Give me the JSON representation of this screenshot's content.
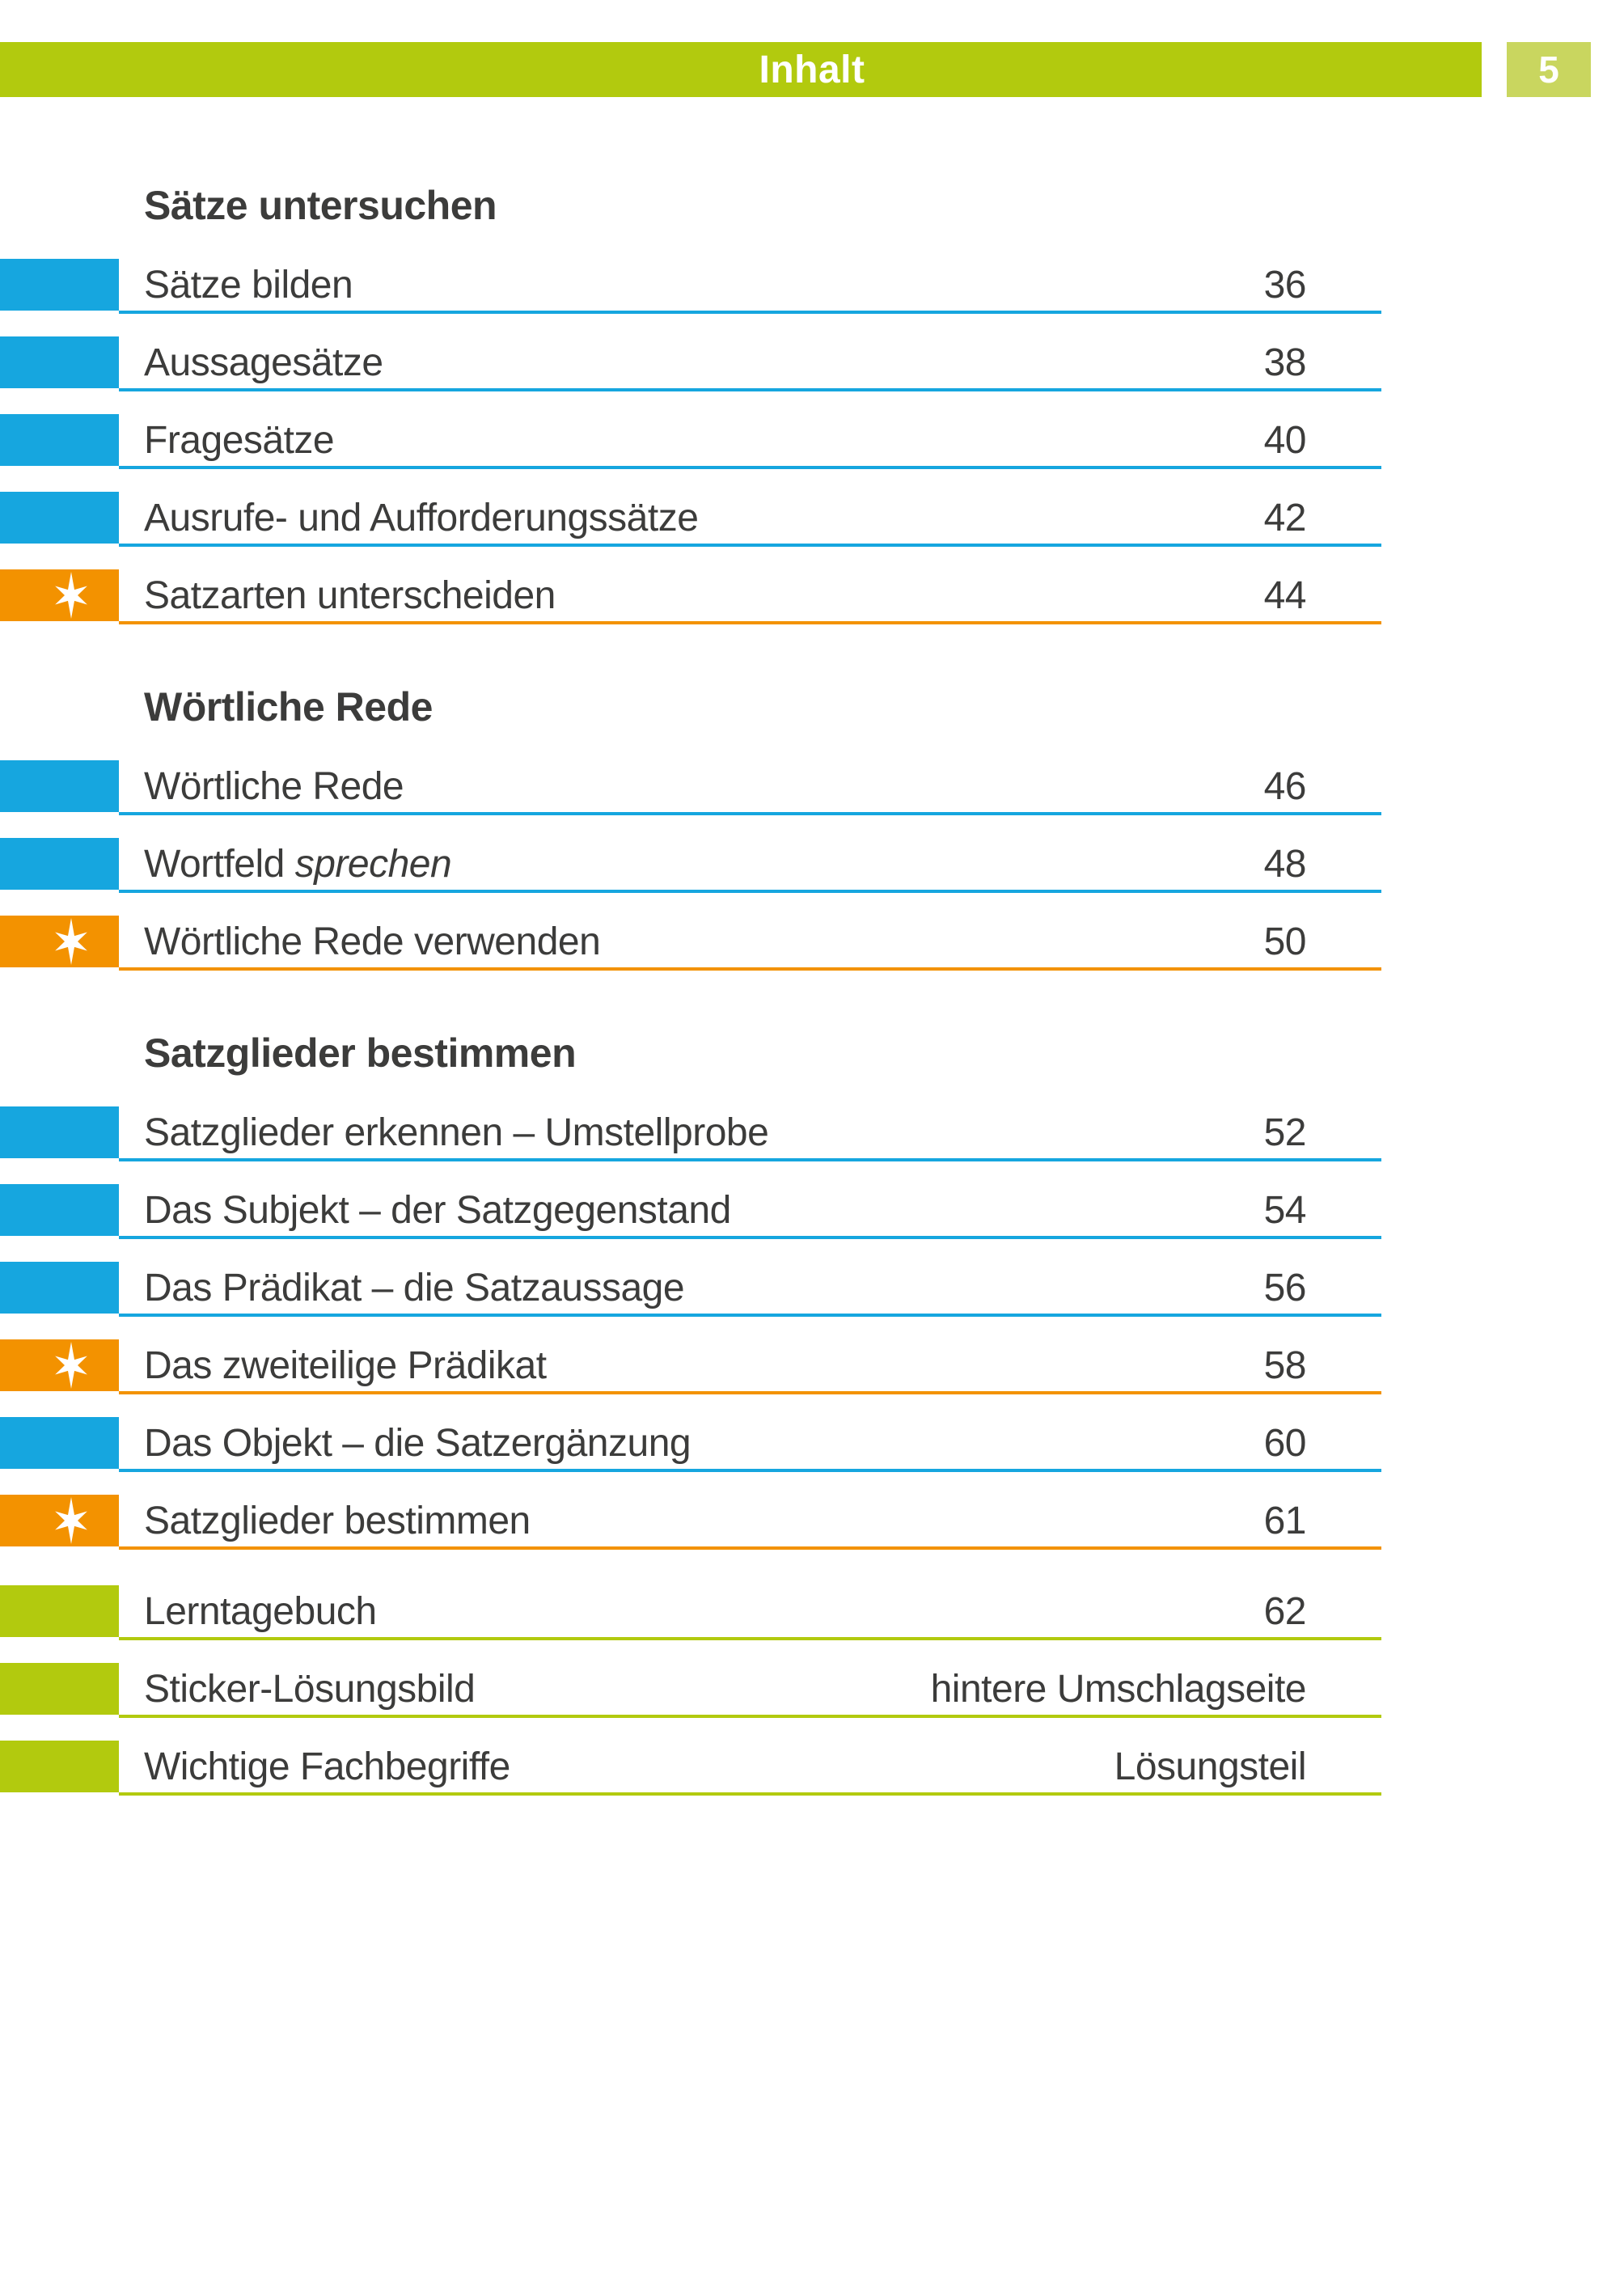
{
  "page": {
    "title": "Inhalt",
    "number": "5"
  },
  "colors": {
    "blue": "#16A6DF",
    "orange": "#F39200",
    "green": "#B2CA0E",
    "green_light": "#C9D65F",
    "text": "#3C3C3B",
    "bar_text": "#FFFFFF"
  },
  "icons": {
    "star_marker": "six-pointed-star"
  },
  "sections": [
    {
      "heading": "Sätze untersuchen",
      "entries": [
        {
          "label": "Sätze bilden",
          "page": "36",
          "marker": "blue"
        },
        {
          "label": "Aussagesätze",
          "page": "38",
          "marker": "blue"
        },
        {
          "label": "Fragesätze",
          "page": "40",
          "marker": "blue"
        },
        {
          "label": "Ausrufe- und Aufforderungssätze",
          "page": "42",
          "marker": "blue"
        },
        {
          "label": "Satzarten unterscheiden",
          "page": "44",
          "marker": "star"
        }
      ]
    },
    {
      "heading": "Wörtliche Rede",
      "entries": [
        {
          "label": "Wörtliche Rede",
          "page": "46",
          "marker": "blue"
        },
        {
          "label": "Wortfeld sprechen",
          "parts": [
            {
              "text": "Wortfeld "
            },
            {
              "text": "sprechen",
              "italic": true
            }
          ],
          "page": "48",
          "marker": "blue"
        },
        {
          "label": "Wörtliche Rede verwenden",
          "page": "50",
          "marker": "star"
        }
      ]
    },
    {
      "heading": "Satzglieder bestimmen",
      "entries": [
        {
          "label": "Satzglieder erkennen – Umstellprobe",
          "page": "52",
          "marker": "blue"
        },
        {
          "label": "Das Subjekt – der Satzgegenstand",
          "page": "54",
          "marker": "blue"
        },
        {
          "label": "Das Prädikat – die Satzaussage",
          "page": "56",
          "marker": "blue"
        },
        {
          "label": "Das zweiteilige Prädikat",
          "page": "58",
          "marker": "star"
        },
        {
          "label": "Das Objekt – die Satzergänzung",
          "page": "60",
          "marker": "blue"
        },
        {
          "label": "Satzglieder bestimmen",
          "page": "61",
          "marker": "star"
        }
      ]
    },
    {
      "heading": "",
      "entries": [
        {
          "label": "Lerntagebuch",
          "page": "62",
          "marker": "green"
        },
        {
          "label": "Sticker-Lösungsbild",
          "page": "hintere Umschlagseite",
          "marker": "green"
        },
        {
          "label": "Wichtige Fachbegriffe",
          "page": "Lösungsteil",
          "marker": "green"
        }
      ]
    }
  ]
}
